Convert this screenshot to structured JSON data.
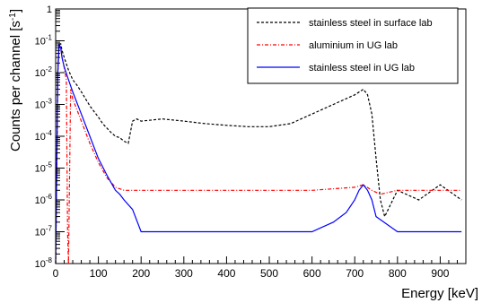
{
  "chart_data": {
    "type": "line",
    "title": "",
    "xlabel": "Energy [keV]",
    "ylabel": "Counts per channel [s",
    "ylabel_superscript": "-1",
    "ylabel_suffix": "]",
    "xlim": [
      0,
      960
    ],
    "ylim": [
      1e-08,
      1
    ],
    "yscale": "log",
    "grid": false,
    "legend_position": "top-right",
    "x_ticks": [
      "0",
      "100",
      "200",
      "300",
      "400",
      "500",
      "600",
      "700",
      "800",
      "900"
    ],
    "y_ticks": [
      {
        "base": "10",
        "exp": "-8"
      },
      {
        "base": "10",
        "exp": "-7"
      },
      {
        "base": "10",
        "exp": "-6"
      },
      {
        "base": "10",
        "exp": "-5"
      },
      {
        "base": "10",
        "exp": "-4"
      },
      {
        "base": "10",
        "exp": "-3"
      },
      {
        "base": "10",
        "exp": "-2"
      },
      {
        "base": "10",
        "exp": "-1"
      },
      {
        "base": "1",
        "exp": ""
      }
    ],
    "series": [
      {
        "name": "stainless steel in surface lab",
        "color": "#000000",
        "style": "dashed",
        "x": [
          0,
          5,
          8,
          12,
          15,
          20,
          30,
          40,
          50,
          60,
          70,
          80,
          90,
          100,
          110,
          120,
          130,
          140,
          150,
          160,
          170,
          180,
          190,
          200,
          250,
          300,
          350,
          400,
          450,
          500,
          550,
          600,
          650,
          700,
          720,
          730,
          740,
          750,
          760,
          770,
          800,
          850,
          900,
          950
        ],
        "y": [
          1e-08,
          0.01,
          0.08,
          0.08,
          0.05,
          0.03,
          0.012,
          0.006,
          0.004,
          0.0025,
          0.0015,
          0.0009,
          0.0006,
          0.0004,
          0.00025,
          0.00018,
          0.00013,
          0.0001,
          9e-05,
          7e-05,
          6e-05,
          0.0003,
          0.00035,
          0.0003,
          0.00035,
          0.0003,
          0.00025,
          0.00022,
          0.0002,
          0.0002,
          0.00025,
          0.0005,
          0.001,
          0.002,
          0.003,
          0.002,
          0.0005,
          2e-05,
          1e-06,
          3e-07,
          2e-06,
          1e-06,
          3e-06,
          1e-06
        ]
      },
      {
        "name": "aluminium in UG lab",
        "color": "#ff0000",
        "style": "dash-dot",
        "x": [
          0,
          5,
          8,
          12,
          15,
          20,
          25,
          28,
          30,
          35,
          40,
          60,
          80,
          100,
          120,
          140,
          160,
          180,
          200,
          300,
          400,
          500,
          600,
          700,
          720,
          740,
          760,
          800,
          850,
          900,
          950
        ],
        "y": [
          1e-08,
          0.01,
          0.08,
          0.06,
          0.03,
          0.015,
          0.006,
          1e-07,
          1e-08,
          0.003,
          0.0015,
          0.0003,
          6e-05,
          1.5e-05,
          5e-06,
          2.5e-06,
          2e-06,
          2e-06,
          2e-06,
          2e-06,
          2e-06,
          2e-06,
          2e-06,
          2.5e-06,
          3e-06,
          2e-06,
          1.5e-06,
          2e-06,
          2e-06,
          2e-06,
          2e-06
        ]
      },
      {
        "name": "stainless steel in UG lab",
        "color": "#0000ff",
        "style": "solid",
        "x": [
          0,
          5,
          8,
          12,
          15,
          20,
          30,
          40,
          60,
          80,
          100,
          120,
          140,
          150,
          160,
          180,
          200,
          300,
          400,
          500,
          600,
          650,
          680,
          700,
          710,
          720,
          730,
          740,
          750,
          800,
          900,
          950
        ],
        "y": [
          1e-08,
          0.01,
          0.08,
          0.06,
          0.03,
          0.015,
          0.006,
          0.0025,
          0.0005,
          0.0001,
          2e-05,
          6e-06,
          2e-06,
          1.5e-06,
          1e-06,
          5e-07,
          1e-07,
          1e-07,
          1e-07,
          1e-07,
          1e-07,
          2e-07,
          4e-07,
          1e-06,
          2e-06,
          3e-06,
          2e-06,
          1e-06,
          3e-07,
          1e-07,
          1e-07,
          1e-07
        ]
      }
    ]
  }
}
